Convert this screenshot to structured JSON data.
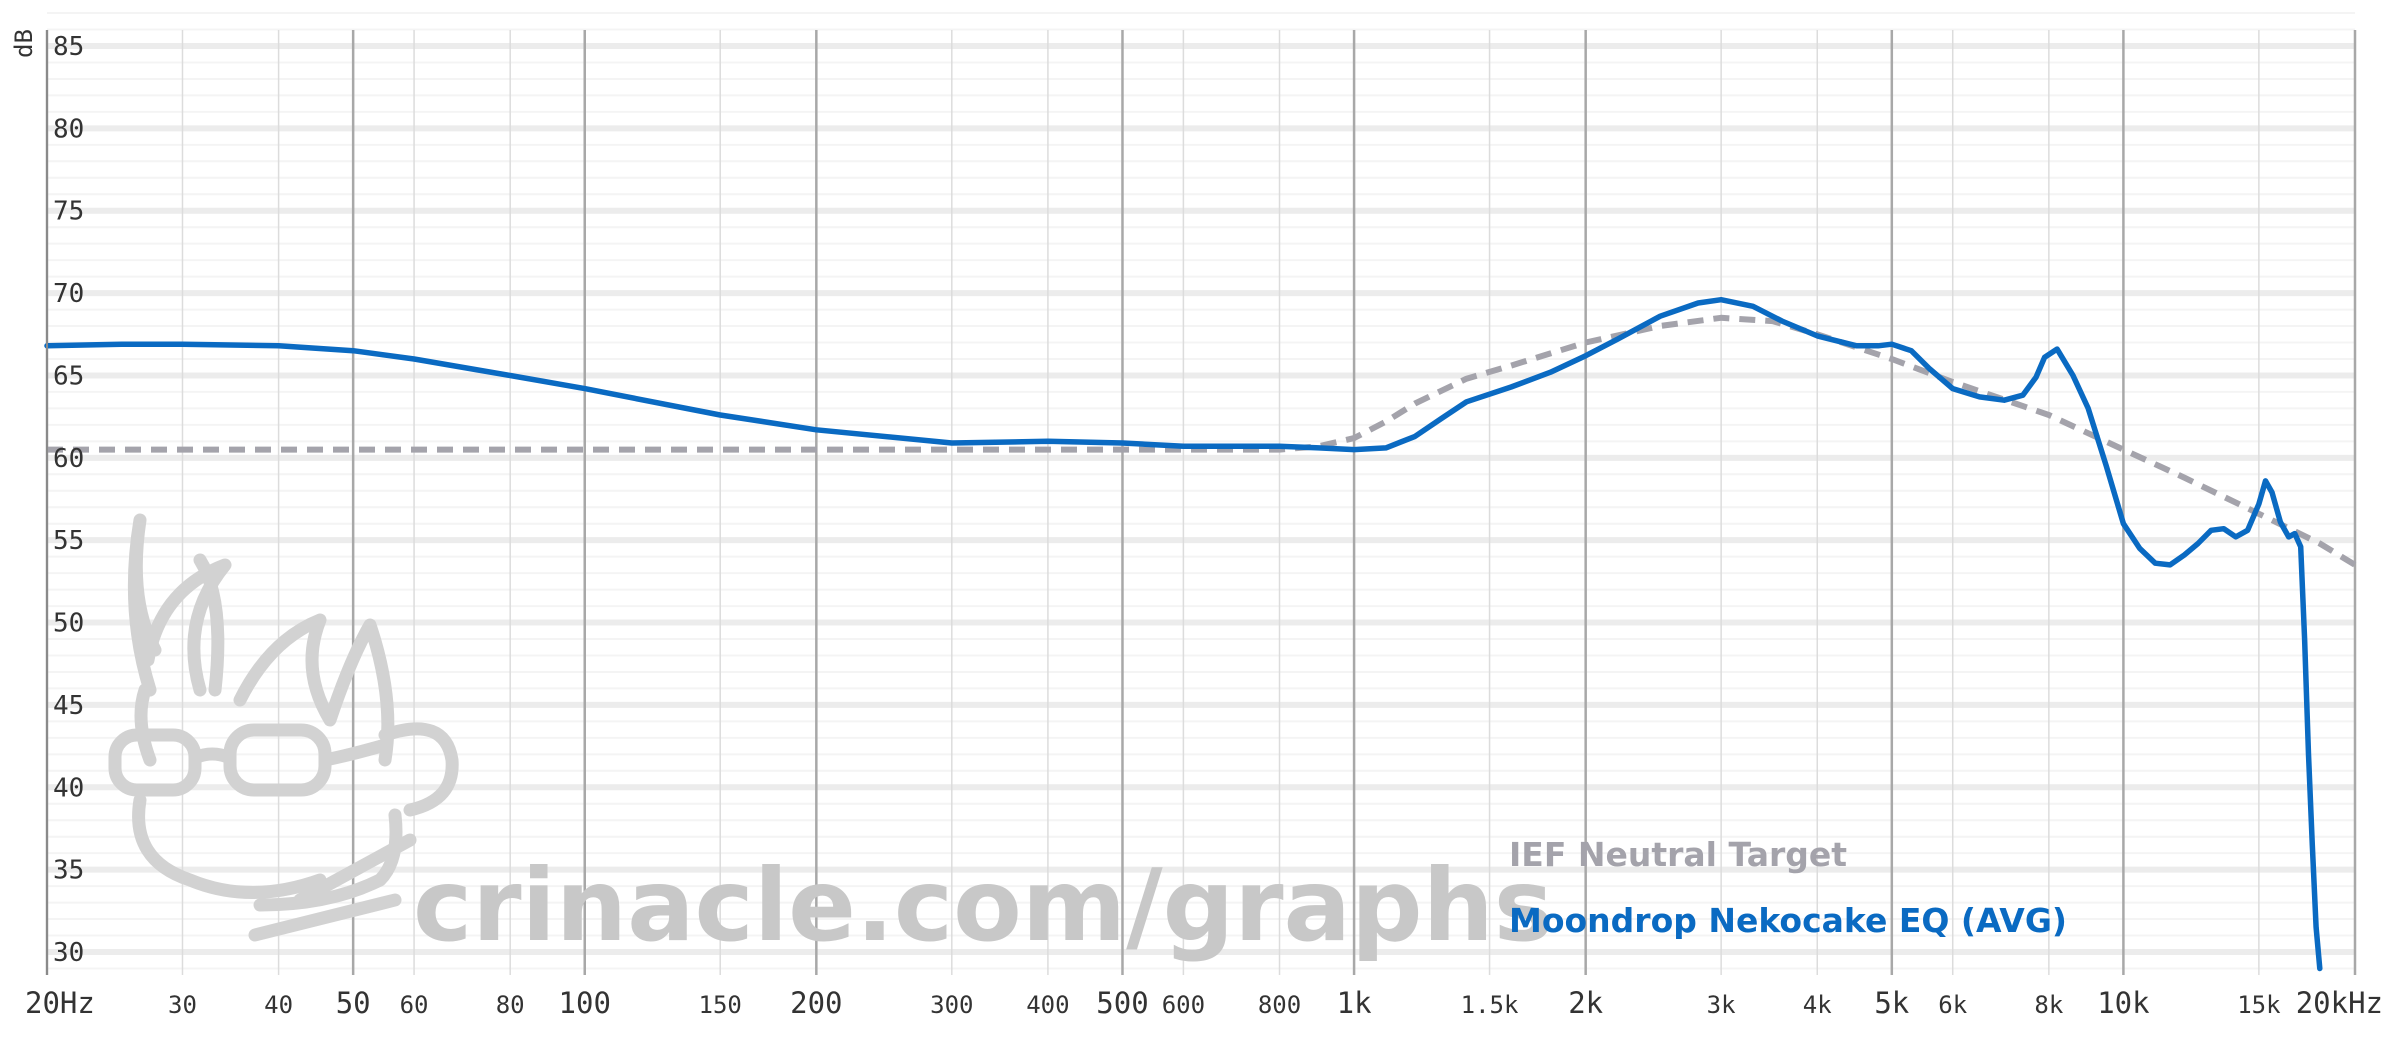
{
  "watermark": "crinacle.com/graphs",
  "chart_data": {
    "type": "line",
    "ylabel": "dB",
    "xscale": "log",
    "xlim": [
      20,
      20000
    ],
    "ylim": [
      29,
      87
    ],
    "grid": true,
    "legend_position": "bottom-right",
    "yticks": [
      "85",
      "80",
      "75",
      "70",
      "65",
      "60",
      "55",
      "50",
      "45",
      "40",
      "35",
      "30"
    ],
    "ytick_values": [
      85,
      80,
      75,
      70,
      65,
      60,
      55,
      50,
      45,
      40,
      35,
      30
    ],
    "xticks": [
      {
        "f": 20,
        "label": "20Hz",
        "major": true
      },
      {
        "f": 30,
        "label": "30",
        "major": false
      },
      {
        "f": 40,
        "label": "40",
        "major": false
      },
      {
        "f": 50,
        "label": "50",
        "major": true
      },
      {
        "f": 60,
        "label": "60",
        "major": false
      },
      {
        "f": 80,
        "label": "80",
        "major": false
      },
      {
        "f": 100,
        "label": "100",
        "major": true
      },
      {
        "f": 150,
        "label": "150",
        "major": false
      },
      {
        "f": 200,
        "label": "200",
        "major": true
      },
      {
        "f": 300,
        "label": "300",
        "major": false
      },
      {
        "f": 400,
        "label": "400",
        "major": false
      },
      {
        "f": 500,
        "label": "500",
        "major": true
      },
      {
        "f": 600,
        "label": "600",
        "major": false
      },
      {
        "f": 800,
        "label": "800",
        "major": false
      },
      {
        "f": 1000,
        "label": "1k",
        "major": true
      },
      {
        "f": 1500,
        "label": "1.5k",
        "major": false
      },
      {
        "f": 2000,
        "label": "2k",
        "major": true
      },
      {
        "f": 3000,
        "label": "3k",
        "major": false
      },
      {
        "f": 4000,
        "label": "4k",
        "major": false
      },
      {
        "f": 5000,
        "label": "5k",
        "major": true
      },
      {
        "f": 6000,
        "label": "6k",
        "major": false
      },
      {
        "f": 8000,
        "label": "8k",
        "major": false
      },
      {
        "f": 10000,
        "label": "10k",
        "major": true
      },
      {
        "f": 15000,
        "label": "15k",
        "major": false
      },
      {
        "f": 20000,
        "label": "20kHz",
        "major": true
      }
    ],
    "series": [
      {
        "name": "IEF Neutral Target",
        "color": "#a4a3ab",
        "dashed": true,
        "x": [
          20,
          50,
          100,
          200,
          500,
          800,
          900,
          1000,
          1100,
          1200,
          1400,
          1600,
          2000,
          2500,
          3000,
          3500,
          4000,
          5000,
          6000,
          8000,
          10000,
          12000,
          15000,
          18000,
          20000
        ],
        "y": [
          60.5,
          60.5,
          60.5,
          60.5,
          60.5,
          60.5,
          60.7,
          61.2,
          62.2,
          63.3,
          64.8,
          65.6,
          67.0,
          68.0,
          68.5,
          68.3,
          67.5,
          66.0,
          64.6,
          62.6,
          60.5,
          58.8,
          56.6,
          54.8,
          53.5
        ]
      },
      {
        "name": "Moondrop Nekocake EQ (AVG)",
        "color": "#0a6ac2",
        "dashed": false,
        "x": [
          20,
          25,
          30,
          40,
          50,
          60,
          80,
          100,
          150,
          200,
          300,
          400,
          500,
          600,
          700,
          800,
          900,
          1000,
          1100,
          1200,
          1300,
          1400,
          1600,
          1800,
          2000,
          2200,
          2500,
          2800,
          3000,
          3300,
          3600,
          4000,
          4500,
          4800,
          5000,
          5300,
          5600,
          6000,
          6500,
          7000,
          7400,
          7700,
          7900,
          8200,
          8600,
          9000,
          9500,
          10000,
          10500,
          11000,
          11500,
          12000,
          12500,
          13000,
          13500,
          14000,
          14500,
          15000,
          15300,
          15600,
          16000,
          16400,
          16700,
          17000,
          17200,
          17400,
          17600,
          17800,
          18000
        ],
        "y": [
          66.8,
          66.9,
          66.9,
          66.8,
          66.5,
          66.0,
          65.0,
          64.2,
          62.6,
          61.7,
          60.9,
          61.0,
          60.9,
          60.7,
          60.7,
          60.7,
          60.6,
          60.5,
          60.6,
          61.3,
          62.4,
          63.4,
          64.3,
          65.2,
          66.2,
          67.2,
          68.6,
          69.4,
          69.6,
          69.2,
          68.3,
          67.4,
          66.8,
          66.8,
          66.9,
          66.5,
          65.4,
          64.2,
          63.7,
          63.5,
          63.8,
          64.9,
          66.1,
          66.6,
          65.0,
          63.0,
          59.5,
          56.0,
          54.5,
          53.6,
          53.5,
          54.1,
          54.8,
          55.6,
          55.7,
          55.2,
          55.6,
          57.2,
          58.6,
          57.9,
          56.1,
          55.2,
          55.4,
          54.6,
          49.0,
          42.0,
          36.5,
          31.5,
          29.0
        ]
      }
    ]
  }
}
